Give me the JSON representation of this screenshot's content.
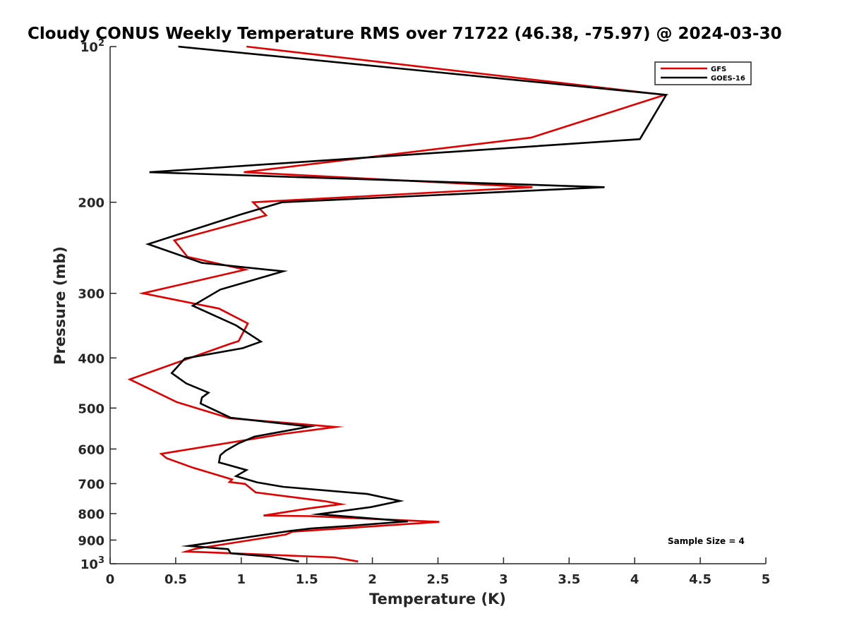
{
  "chart_data": {
    "type": "line",
    "title": "Cloudy CONUS Weekly Temperature RMS over 71722 (46.38, -75.97) @ 2024-03-30",
    "xlabel": "Temperature (K)",
    "ylabel": "Pressure (mb)",
    "xlim": [
      0,
      5
    ],
    "ylim": [
      1000,
      100
    ],
    "yscale": "log",
    "x_ticks": [
      0,
      0.5,
      1,
      1.5,
      2,
      2.5,
      3,
      3.5,
      4,
      4.5,
      5
    ],
    "x_tick_labels": [
      "0",
      "0.5",
      "1",
      "1.5",
      "2",
      "2.5",
      "3",
      "3.5",
      "4",
      "4.5",
      "5"
    ],
    "y_ticks": [
      100,
      200,
      300,
      400,
      500,
      600,
      700,
      800,
      900,
      1000
    ],
    "y_tick_labels": [
      {
        "base": "10",
        "exp": "2"
      },
      {
        "base": "200",
        "exp": ""
      },
      {
        "base": "300",
        "exp": ""
      },
      {
        "base": "400",
        "exp": ""
      },
      {
        "base": "500",
        "exp": ""
      },
      {
        "base": "600",
        "exp": ""
      },
      {
        "base": "700",
        "exp": ""
      },
      {
        "base": "800",
        "exp": ""
      },
      {
        "base": "900",
        "exp": ""
      },
      {
        "base": "10",
        "exp": "3"
      }
    ],
    "legend_position": "top-right",
    "annotation": "Sample Size = 4",
    "series": [
      {
        "name": "GFS",
        "color": "#e00000",
        "points": [
          [
            1.04,
            100
          ],
          [
            4.23,
            124
          ],
          [
            3.21,
            150
          ],
          [
            1.02,
            175
          ],
          [
            3.22,
            187
          ],
          [
            1.09,
            200
          ],
          [
            1.19,
            212
          ],
          [
            0.49,
            237
          ],
          [
            0.59,
            255
          ],
          [
            1.03,
            270
          ],
          [
            0.25,
            300
          ],
          [
            0.83,
            321
          ],
          [
            1.05,
            343
          ],
          [
            0.98,
            371
          ],
          [
            0.91,
            376
          ],
          [
            0.34,
            423
          ],
          [
            0.15,
            440
          ],
          [
            0.51,
            487
          ],
          [
            0.91,
            523
          ],
          [
            1.72,
            544
          ],
          [
            1.32,
            561
          ],
          [
            0.39,
            613
          ],
          [
            0.43,
            625
          ],
          [
            0.63,
            652
          ],
          [
            0.93,
            687
          ],
          [
            0.91,
            695
          ],
          [
            1.03,
            701
          ],
          [
            1.11,
            728
          ],
          [
            1.64,
            757
          ],
          [
            1.76,
            767
          ],
          [
            1.51,
            782
          ],
          [
            1.17,
            807
          ],
          [
            1.52,
            809
          ],
          [
            2.51,
            830
          ],
          [
            1.39,
            867
          ],
          [
            1.34,
            878
          ],
          [
            0.65,
            936
          ],
          [
            0.58,
            947
          ],
          [
            0.86,
            953
          ],
          [
            1.71,
            972
          ],
          [
            1.89,
            990
          ]
        ]
      },
      {
        "name": "GOES-16",
        "color": "#000000",
        "points": [
          [
            0.52,
            100
          ],
          [
            4.24,
            124
          ],
          [
            4.04,
            151
          ],
          [
            0.3,
            175
          ],
          [
            3.77,
            187
          ],
          [
            1.31,
            200
          ],
          [
            1.0,
            211
          ],
          [
            0.29,
            241
          ],
          [
            0.7,
            262
          ],
          [
            1.32,
            272
          ],
          [
            0.84,
            295
          ],
          [
            0.63,
            317
          ],
          [
            0.96,
            346
          ],
          [
            1.15,
            372
          ],
          [
            1.01,
            383
          ],
          [
            0.57,
            401
          ],
          [
            0.47,
            428
          ],
          [
            0.58,
            448
          ],
          [
            0.75,
            467
          ],
          [
            0.7,
            477
          ],
          [
            0.69,
            490
          ],
          [
            0.92,
            522
          ],
          [
            1.52,
            543
          ],
          [
            1.1,
            568
          ],
          [
            0.98,
            585
          ],
          [
            0.88,
            605
          ],
          [
            0.84,
            617
          ],
          [
            0.83,
            637
          ],
          [
            0.88,
            642
          ],
          [
            1.04,
            659
          ],
          [
            0.96,
            677
          ],
          [
            1.12,
            696
          ],
          [
            1.32,
            710
          ],
          [
            1.96,
            733
          ],
          [
            2.21,
            756
          ],
          [
            1.99,
            777
          ],
          [
            1.59,
            802
          ],
          [
            2.27,
            828
          ],
          [
            1.82,
            845
          ],
          [
            1.53,
            855
          ],
          [
            1.36,
            865
          ],
          [
            0.6,
            924
          ],
          [
            0.9,
            937
          ],
          [
            0.92,
            955
          ],
          [
            1.22,
            969
          ],
          [
            1.44,
            990
          ]
        ]
      }
    ]
  }
}
